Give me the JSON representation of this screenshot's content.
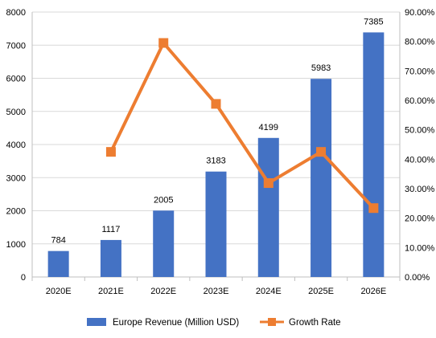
{
  "chart_data": {
    "type": "bar",
    "categories": [
      "2020E",
      "2021E",
      "2022E",
      "2023E",
      "2024E",
      "2025E",
      "2026E"
    ],
    "series": [
      {
        "name": "Europe Revenue (Million USD)",
        "type": "bar",
        "axis": "left",
        "color": "#4472C4",
        "values": [
          784,
          1117,
          2005,
          3183,
          4199,
          5983,
          7385
        ],
        "data_labels": [
          "784",
          "1117",
          "2005",
          "3183",
          "4199",
          "5983",
          "7385"
        ]
      },
      {
        "name": "Growth Rate",
        "type": "line",
        "axis": "right",
        "color": "#ED7D31",
        "marker": "square",
        "values": [
          null,
          42.5,
          79.5,
          58.8,
          31.9,
          42.5,
          23.4
        ]
      }
    ],
    "y_left": {
      "min": 0,
      "max": 8000,
      "ticks": [
        "0",
        "1000",
        "2000",
        "3000",
        "4000",
        "5000",
        "6000",
        "7000",
        "8000"
      ]
    },
    "y_right": {
      "min": 0,
      "max": 90,
      "ticks": [
        "0.00%",
        "10.00%",
        "20.00%",
        "30.00%",
        "40.00%",
        "50.00%",
        "60.00%",
        "70.00%",
        "80.00%",
        "90.00%"
      ]
    },
    "grid": true,
    "legend": "bottom",
    "title": "",
    "xlabel": "",
    "ylabel": ""
  }
}
